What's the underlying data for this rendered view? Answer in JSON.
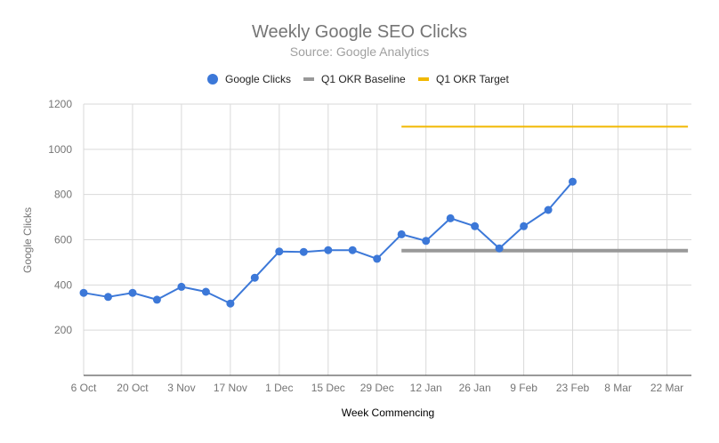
{
  "chart_data": {
    "type": "line",
    "title": "Weekly Google SEO Clicks",
    "subtitle": "Source: Google Analytics",
    "xlabel": "Week Commencing",
    "ylabel": "Google Clicks",
    "ylim": [
      0,
      1200
    ],
    "yticks": [
      200,
      400,
      600,
      800,
      1000,
      1200
    ],
    "xlim": [
      "2025-10-06",
      "2026-03-29"
    ],
    "xticks": [
      {
        "date": "2025-10-06",
        "label": "6 Oct"
      },
      {
        "date": "2025-10-20",
        "label": "20 Oct"
      },
      {
        "date": "2025-11-03",
        "label": "3 Nov"
      },
      {
        "date": "2025-11-17",
        "label": "17 Nov"
      },
      {
        "date": "2025-12-01",
        "label": "1 Dec"
      },
      {
        "date": "2025-12-15",
        "label": "15 Dec"
      },
      {
        "date": "2025-12-29",
        "label": "29 Dec"
      },
      {
        "date": "2026-01-12",
        "label": "12 Jan"
      },
      {
        "date": "2026-01-26",
        "label": "26 Jan"
      },
      {
        "date": "2026-02-09",
        "label": "9 Feb"
      },
      {
        "date": "2026-02-23",
        "label": "23 Feb"
      },
      {
        "date": "2026-03-08",
        "label": "8 Mar"
      },
      {
        "date": "2026-03-22",
        "label": "22 Mar"
      }
    ],
    "grid": true,
    "legend_position": "top-center",
    "series": [
      {
        "name": "Google Clicks",
        "style": "line-with-markers",
        "color": "#3c78d8",
        "x": [
          "2025-10-06",
          "2025-10-13",
          "2025-10-20",
          "2025-10-27",
          "2025-11-03",
          "2025-11-10",
          "2025-11-17",
          "2025-11-24",
          "2025-12-01",
          "2025-12-08",
          "2025-12-15",
          "2025-12-22",
          "2025-12-29",
          "2026-01-05",
          "2026-01-12",
          "2026-01-19",
          "2026-01-26",
          "2026-02-02",
          "2026-02-09",
          "2026-02-16",
          "2026-02-23"
        ],
        "values": [
          365,
          347,
          365,
          335,
          392,
          370,
          318,
          432,
          548,
          546,
          554,
          554,
          516,
          624,
          595,
          695,
          660,
          562,
          660,
          732,
          857
        ]
      },
      {
        "name": "Q1 OKR Baseline",
        "style": "line",
        "color": "#999999",
        "x": [
          "2026-01-05",
          "2026-03-28"
        ],
        "values": [
          552,
          552
        ]
      },
      {
        "name": "Q1 OKR Target",
        "style": "line",
        "color": "#f1b800",
        "x": [
          "2026-01-05",
          "2026-03-28"
        ],
        "values": [
          1100,
          1100
        ]
      }
    ]
  }
}
